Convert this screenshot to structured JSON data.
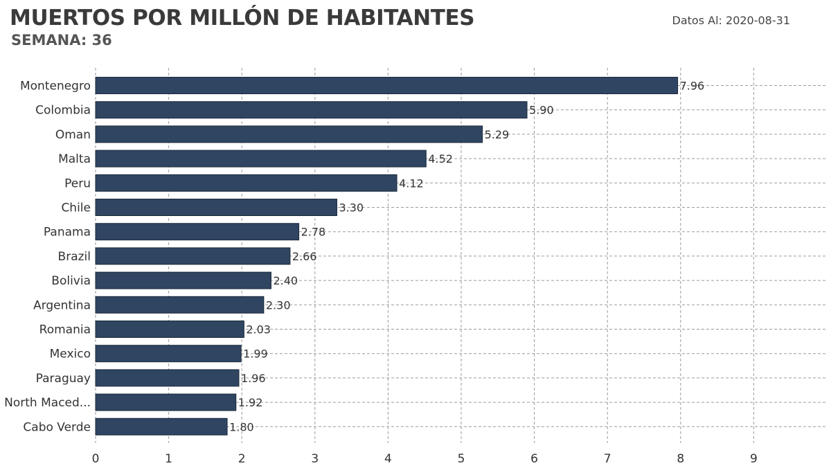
{
  "header": {
    "title": "MUERTOS POR MILLÓN DE HABITANTES",
    "subtitle": "SEMANA: 36",
    "date_label": "Datos Al: 2020-08-31"
  },
  "colors": {
    "bar": "#2f4561",
    "bar_edge": "#1c2a3c",
    "grid": "#9a9a9a"
  },
  "chart_data": {
    "type": "bar",
    "orientation": "horizontal",
    "title": "MUERTOS POR MILLÓN DE HABITANTES",
    "subtitle": "SEMANA: 36",
    "xlabel": "",
    "ylabel": "",
    "xlim": [
      0,
      10
    ],
    "xticks": [
      0,
      1,
      2,
      3,
      4,
      5,
      6,
      7,
      8,
      9
    ],
    "grid": true,
    "categories": [
      "Montenegro",
      "Colombia",
      "Oman",
      "Malta",
      "Peru",
      "Chile",
      "Panama",
      "Brazil",
      "Bolivia",
      "Argentina",
      "Romania",
      "Mexico",
      "Paraguay",
      "North Maced...",
      "Cabo Verde"
    ],
    "values": [
      7.96,
      5.9,
      5.29,
      4.52,
      4.12,
      3.3,
      2.78,
      2.66,
      2.4,
      2.3,
      2.03,
      1.99,
      1.96,
      1.92,
      1.8
    ],
    "value_labels": [
      "7.96",
      "5.90",
      "5.29",
      "4.52",
      "4.12",
      "3.30",
      "2.78",
      "2.66",
      "2.40",
      "2.30",
      "2.03",
      "1.99",
      "1.96",
      "1.92",
      "1.80"
    ]
  }
}
